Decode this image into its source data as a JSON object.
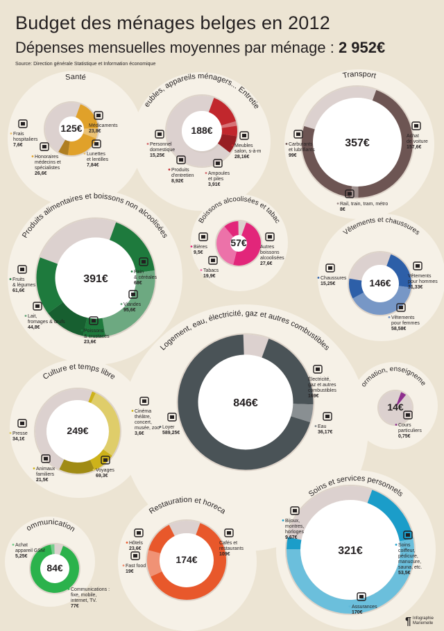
{
  "header": {
    "title": "Budget des ménages belges en 2012",
    "subtitle_prefix": "Dépenses mensuelles moyennes par ménage :",
    "subtitle_total": "2 952€",
    "source": "Source: Direction générale Statistique et Information économique"
  },
  "credit": {
    "glyph": "¶",
    "lines": [
      "Infographie",
      "Mariemelle"
    ]
  },
  "chart_data": [
    {
      "type": "pie",
      "title": "Santé",
      "total": "125€",
      "color": "#e0a12a",
      "slices": [
        {
          "label": [
            "Médicaments"
          ],
          "value": "23,8€",
          "amount": 23.8,
          "icon": "pills-icon"
        },
        {
          "label": [
            "Lunettes",
            "et lentilles"
          ],
          "value": "7,84€",
          "amount": 7.84,
          "icon": "glasses-icon"
        },
        {
          "label": [
            "Honoraires",
            "médecins et",
            "spécialistes"
          ],
          "value": "26,6€",
          "amount": 26.6,
          "icon": "doctor-icon"
        },
        {
          "label": [
            "Frais",
            "hospitaliers"
          ],
          "value": "7,6€",
          "amount": 7.6,
          "icon": "hospital-bed-icon"
        }
      ]
    },
    {
      "type": "pie",
      "title": "Meubles, appareils ménagers... Entretien",
      "total": "188€",
      "color": "#c1272d",
      "slices": [
        {
          "label": [
            "Meubles",
            "salon, s-à-m"
          ],
          "value": "28,16€",
          "amount": 28.16,
          "icon": "armchair-icon"
        },
        {
          "label": [
            "Ampoules",
            "et piles"
          ],
          "value": "3,91€",
          "amount": 3.91,
          "icon": "bulb-icon"
        },
        {
          "label": [
            "Produits",
            "d'entretien"
          ],
          "value": "8,92€",
          "amount": 8.92,
          "icon": "spray-icon"
        },
        {
          "label": [
            "Personnel",
            "domestique"
          ],
          "value": "15,25€",
          "amount": 15.25,
          "icon": "housekeeper-icon"
        }
      ]
    },
    {
      "type": "pie",
      "title": "Transport",
      "total": "357€",
      "color": "#6d5553",
      "slices": [
        {
          "label": [
            "Achat",
            "de voiture"
          ],
          "value": "157,6€",
          "amount": 157.6,
          "icon": "car-icon"
        },
        {
          "label": [
            "Rail, train, tram, métro"
          ],
          "value": "8€",
          "amount": 8,
          "icon": "bus-icon"
        },
        {
          "label": [
            "Carburants",
            "et lubrifiants"
          ],
          "value": "99€",
          "amount": 99,
          "icon": "fuel-can-icon"
        }
      ]
    },
    {
      "type": "pie",
      "title": "Produits alimentaires et boissons non alcoolisées",
      "total": "391€",
      "color": "#1e7a3d",
      "slices": [
        {
          "label": [
            "Pain",
            "& céréales"
          ],
          "value": "68€",
          "amount": 68,
          "icon": "bread-icon"
        },
        {
          "label": [
            "Viandes"
          ],
          "value": "95,6€",
          "amount": 95.6,
          "icon": "meat-icon"
        },
        {
          "label": [
            "Poissons",
            "& crustacés"
          ],
          "value": "23,6€",
          "amount": 23.6,
          "icon": "fish-icon"
        },
        {
          "label": [
            "Lait,",
            "fromages & œufs"
          ],
          "value": "44,8€",
          "amount": 44.8,
          "icon": "milk-icon"
        },
        {
          "label": [
            "Fruits",
            "& légumes"
          ],
          "value": "61,6€",
          "amount": 61.6,
          "icon": "fruit-icon"
        }
      ]
    },
    {
      "type": "pie",
      "title": "Boissons alcoolisées et tabac",
      "total": "57€",
      "color": "#e2267a",
      "slices": [
        {
          "label": [
            "Autres",
            "boissons",
            "alcoolisées"
          ],
          "value": "27,6€",
          "amount": 27.6,
          "icon": "bottle-icon"
        },
        {
          "label": [
            "Tabacs"
          ],
          "value": "19,9€",
          "amount": 19.9,
          "icon": "cigarette-icon"
        },
        {
          "label": [
            "Bières"
          ],
          "value": "9,5€",
          "amount": 9.5,
          "icon": "beer-icon"
        }
      ]
    },
    {
      "type": "pie",
      "title": "Vêtements et chaussures",
      "total": "146€",
      "color": "#2d5fa8",
      "slices": [
        {
          "label": [
            "Vêtements",
            "pour hommes"
          ],
          "value": "31,33€",
          "amount": 31.33,
          "icon": "suit-icon"
        },
        {
          "label": [
            "Vêtements",
            "pour femmes"
          ],
          "value": "58,58€",
          "amount": 58.58,
          "icon": "dress-icon"
        },
        {
          "label": [
            "Chaussures"
          ],
          "value": "15,25€",
          "amount": 15.25,
          "icon": "heel-shoe-icon"
        }
      ]
    },
    {
      "type": "pie",
      "title": "Logement, eau, électricité, gaz et autres combustibles",
      "total": "846€",
      "color": "#4a5357",
      "slices": [
        {
          "label": [
            "Électricité,",
            "gaz et autres",
            "combustibles"
          ],
          "value": "169€",
          "amount": 169,
          "icon": "flame-icon"
        },
        {
          "label": [
            "Eau"
          ],
          "value": "36,17€",
          "amount": 36.17,
          "icon": "tap-icon"
        },
        {
          "label": [
            "Loyer"
          ],
          "value": "589,25€",
          "amount": 589.25,
          "icon": "euro-house-icon"
        }
      ]
    },
    {
      "type": "pie",
      "title": "Culture et temps libre",
      "total": "249€",
      "color": "#cdb21a",
      "slices": [
        {
          "label": [
            "Cinéma",
            "théâtre,",
            "concert,",
            "musée, zoo"
          ],
          "value": "3,6€",
          "amount": 3.6,
          "icon": "clapperboard-icon"
        },
        {
          "label": [
            "Voyages"
          ],
          "value": "69,3€",
          "amount": 69.3,
          "icon": "suitcase-icon"
        },
        {
          "label": [
            "Animaux",
            "familiers"
          ],
          "value": "21,5€",
          "amount": 21.5,
          "icon": "pets-icon"
        },
        {
          "label": [
            "Presse"
          ],
          "value": "34,1€",
          "amount": 34.1,
          "icon": "newspaper-icon"
        }
      ]
    },
    {
      "type": "pie",
      "title": "Formation, enseignement",
      "total": "14€",
      "color": "#8e2f8e",
      "slices": [
        {
          "label": [
            "Cours",
            "particuliers"
          ],
          "value": "0,75€",
          "amount": 0.75,
          "icon": "teacher-icon"
        }
      ]
    },
    {
      "type": "pie",
      "title": "Communications",
      "total": "84€",
      "color": "#2bb24c",
      "slices": [
        {
          "label": [
            "Communications :",
            "fixe, mobile,",
            "internet, TV."
          ],
          "value": "77€",
          "amount": 77,
          "icon": ""
        },
        {
          "label": [
            "Achat",
            "appareil GSM"
          ],
          "value": "5,25€",
          "amount": 5.25,
          "icon": ""
        }
      ]
    },
    {
      "type": "pie",
      "title": "Restauration et horeca",
      "total": "174€",
      "color": "#e8582b",
      "slices": [
        {
          "label": [
            "Cafés et",
            "restaurants"
          ],
          "value": "109€",
          "amount": 109,
          "icon": "cutlery-icon"
        },
        {
          "label": [
            "Fast food"
          ],
          "value": "19€",
          "amount": 19,
          "icon": "hotdog-icon"
        },
        {
          "label": [
            "Hôtels"
          ],
          "value": "23,6€",
          "amount": 23.6,
          "icon": "hotel-bed-icon"
        }
      ]
    },
    {
      "type": "pie",
      "title": "Soins et services personnels",
      "total": "321€",
      "color": "#1b9dc9",
      "slices": [
        {
          "label": [
            "Soins",
            "coiffeur,",
            "pédicure,",
            "manucure,",
            "sauna, etc."
          ],
          "value": "53,5€",
          "amount": 53.5,
          "icon": "scissors-icon"
        },
        {
          "label": [
            "Assurances"
          ],
          "value": "170€",
          "amount": 170,
          "icon": "family-umbrella-icon"
        },
        {
          "label": [
            "Bijoux,",
            "montres,",
            "horloges"
          ],
          "value": "9,67€",
          "amount": 9.67,
          "icon": "diamond-icon"
        }
      ]
    }
  ]
}
